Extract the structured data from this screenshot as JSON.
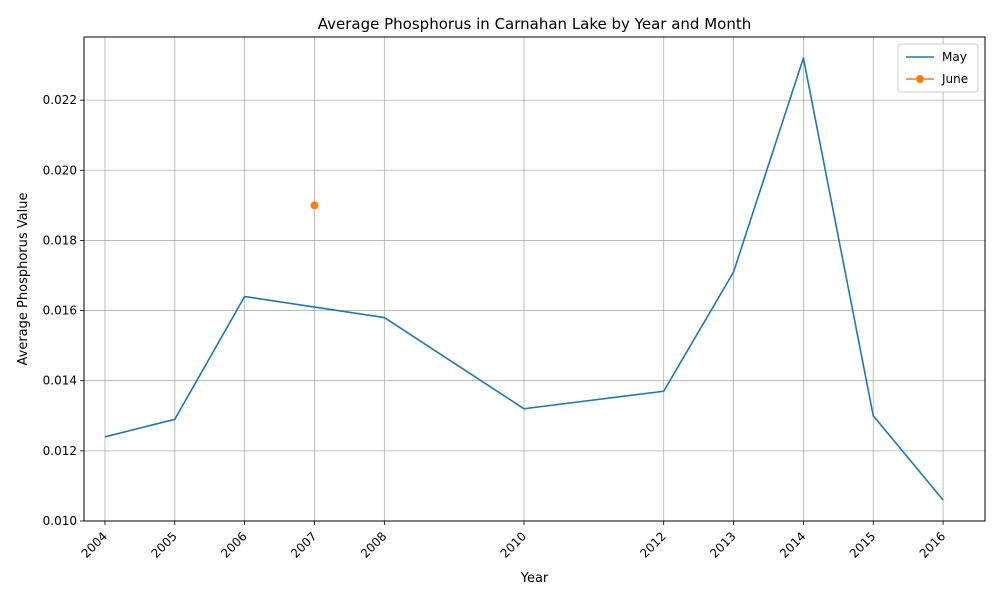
{
  "chart_data": {
    "type": "line",
    "title": "Average Phosphorus in Carnahan Lake by Year and Month",
    "xlabel": "Year",
    "ylabel": "Average Phosphorus Value",
    "xlim": [
      2003.7,
      2016.6
    ],
    "ylim": [
      0.01,
      0.0238
    ],
    "x_ticks": [
      2004,
      2005,
      2006,
      2007,
      2008,
      2010,
      2012,
      2013,
      2014,
      2015,
      2016
    ],
    "y_ticks": [
      0.01,
      0.012,
      0.014,
      0.016,
      0.018,
      0.02,
      0.022
    ],
    "y_tick_labels": [
      "0.010",
      "0.012",
      "0.014",
      "0.016",
      "0.018",
      "0.020",
      "0.022"
    ],
    "grid": true,
    "legend_position": "top-right",
    "series": [
      {
        "name": "May",
        "color": "#1f77b4",
        "marker": "none",
        "x": [
          2004,
          2005,
          2006,
          2007,
          2008,
          2010,
          2012,
          2013,
          2014,
          2015,
          2016
        ],
        "values": [
          0.0124,
          0.0129,
          0.0164,
          0.0161,
          0.0158,
          0.0132,
          0.0137,
          0.0171,
          0.0232,
          0.013,
          0.0106
        ]
      },
      {
        "name": "June",
        "color": "#ff7f0e",
        "marker": "circle",
        "x": [
          2007
        ],
        "values": [
          0.019
        ]
      }
    ]
  }
}
